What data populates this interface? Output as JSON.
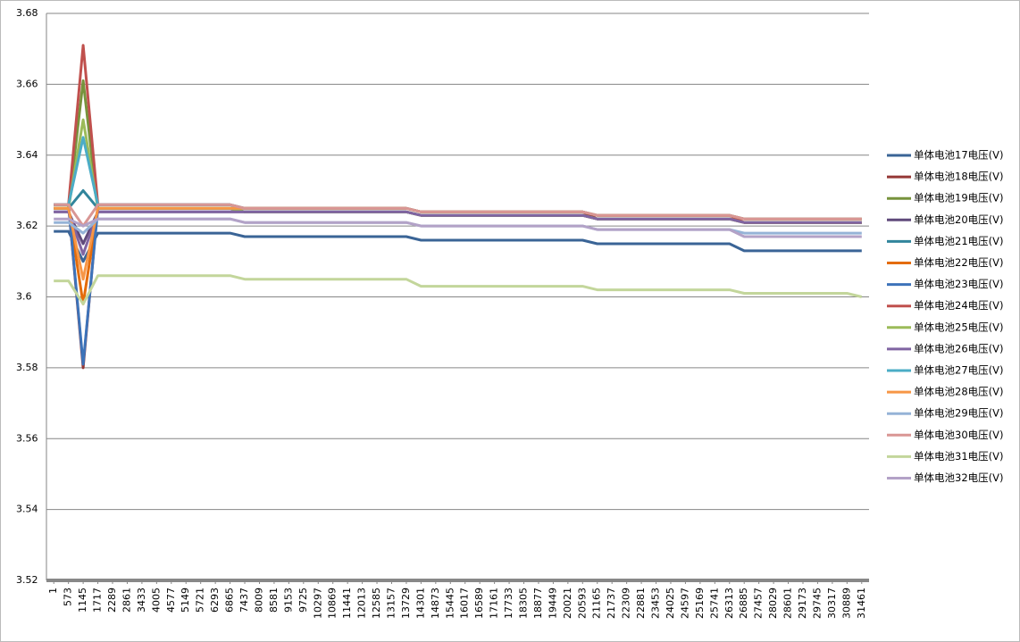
{
  "chart_data": {
    "type": "line",
    "categories": [
      1,
      573,
      1145,
      1717,
      2289,
      2861,
      3433,
      4005,
      4577,
      5149,
      5721,
      6293,
      6865,
      7437,
      8009,
      8581,
      9153,
      9725,
      10297,
      10869,
      11441,
      12013,
      12585,
      13157,
      13729,
      14301,
      14873,
      15445,
      16017,
      16589,
      17161,
      17733,
      18305,
      18877,
      19449,
      20021,
      20593,
      21165,
      21737,
      22309,
      22881,
      23453,
      24025,
      24597,
      25169,
      25741,
      26313,
      26885,
      27457,
      28029,
      28601,
      29173,
      29745,
      30317,
      30889,
      31461
    ],
    "ylim": [
      3.52,
      3.68
    ],
    "yticks": [
      3.52,
      3.54,
      3.56,
      3.58,
      3.6,
      3.62,
      3.64,
      3.66,
      3.68
    ],
    "grid": true,
    "legend": "right",
    "series": [
      {
        "name": "单体电池17电压(V)",
        "color": "#3a6496",
        "values": [
          3.6185,
          3.6185,
          3.61,
          3.618,
          3.618,
          3.618,
          3.618,
          3.618,
          3.618,
          3.618,
          3.618,
          3.618,
          3.618,
          3.617,
          3.617,
          3.617,
          3.617,
          3.617,
          3.617,
          3.617,
          3.617,
          3.617,
          3.617,
          3.617,
          3.617,
          3.616,
          3.616,
          3.616,
          3.616,
          3.616,
          3.616,
          3.616,
          3.616,
          3.616,
          3.616,
          3.616,
          3.616,
          3.615,
          3.615,
          3.615,
          3.615,
          3.615,
          3.615,
          3.615,
          3.615,
          3.615,
          3.615,
          3.613,
          3.613,
          3.613,
          3.613,
          3.613,
          3.613,
          3.613,
          3.613,
          3.613
        ]
      },
      {
        "name": "单体电池18电压(V)",
        "color": "#953735",
        "values": [
          3.626,
          3.626,
          3.58,
          3.626,
          3.626,
          3.626,
          3.626,
          3.626,
          3.626,
          3.626,
          3.626,
          3.626,
          3.626,
          3.625,
          3.625,
          3.625,
          3.625,
          3.625,
          3.625,
          3.625,
          3.625,
          3.625,
          3.625,
          3.625,
          3.625,
          3.624,
          3.624,
          3.624,
          3.624,
          3.624,
          3.624,
          3.624,
          3.624,
          3.624,
          3.624,
          3.624,
          3.624,
          3.622,
          3.622,
          3.622,
          3.622,
          3.622,
          3.622,
          3.622,
          3.622,
          3.622,
          3.622,
          3.621,
          3.621,
          3.621,
          3.621,
          3.621,
          3.621,
          3.621,
          3.621,
          3.621
        ]
      },
      {
        "name": "单体电池19电压(V)",
        "color": "#77933c",
        "values": [
          3.625,
          3.625,
          3.661,
          3.625,
          3.625,
          3.625,
          3.625,
          3.625,
          3.625,
          3.625,
          3.625,
          3.625,
          3.625,
          3.624,
          3.624,
          3.624,
          3.624,
          3.624,
          3.624,
          3.624,
          3.624,
          3.624,
          3.624,
          3.624,
          3.624,
          3.623,
          3.623,
          3.623,
          3.623,
          3.623,
          3.623,
          3.623,
          3.623,
          3.623,
          3.623,
          3.623,
          3.623,
          3.622,
          3.622,
          3.622,
          3.622,
          3.622,
          3.622,
          3.622,
          3.622,
          3.622,
          3.622,
          3.621,
          3.621,
          3.621,
          3.621,
          3.621,
          3.621,
          3.621,
          3.621,
          3.621
        ]
      },
      {
        "name": "单体电池20电压(V)",
        "color": "#604a7b",
        "values": [
          3.624,
          3.624,
          3.615,
          3.624,
          3.624,
          3.624,
          3.624,
          3.624,
          3.624,
          3.624,
          3.624,
          3.624,
          3.624,
          3.624,
          3.624,
          3.624,
          3.624,
          3.624,
          3.624,
          3.624,
          3.624,
          3.624,
          3.624,
          3.624,
          3.624,
          3.623,
          3.623,
          3.623,
          3.623,
          3.623,
          3.623,
          3.623,
          3.623,
          3.623,
          3.623,
          3.623,
          3.623,
          3.622,
          3.622,
          3.622,
          3.622,
          3.622,
          3.622,
          3.622,
          3.622,
          3.622,
          3.622,
          3.621,
          3.621,
          3.621,
          3.621,
          3.621,
          3.621,
          3.621,
          3.621,
          3.621
        ]
      },
      {
        "name": "单体电池21电压(V)",
        "color": "#31859c",
        "values": [
          3.625,
          3.625,
          3.63,
          3.625,
          3.625,
          3.625,
          3.625,
          3.625,
          3.625,
          3.625,
          3.625,
          3.625,
          3.625,
          3.625,
          3.625,
          3.625,
          3.625,
          3.625,
          3.625,
          3.625,
          3.625,
          3.625,
          3.625,
          3.625,
          3.625,
          3.624,
          3.624,
          3.624,
          3.624,
          3.624,
          3.624,
          3.624,
          3.624,
          3.624,
          3.624,
          3.624,
          3.624,
          3.623,
          3.623,
          3.623,
          3.623,
          3.623,
          3.623,
          3.623,
          3.623,
          3.623,
          3.623,
          3.622,
          3.622,
          3.622,
          3.622,
          3.622,
          3.622,
          3.622,
          3.622,
          3.622
        ]
      },
      {
        "name": "单体电池22电压(V)",
        "color": "#e46c0a",
        "values": [
          3.625,
          3.625,
          3.598,
          3.625,
          3.625,
          3.625,
          3.625,
          3.625,
          3.625,
          3.625,
          3.625,
          3.625,
          3.625,
          3.624,
          3.624,
          3.624,
          3.624,
          3.624,
          3.624,
          3.624,
          3.624,
          3.624,
          3.624,
          3.624,
          3.624,
          3.623,
          3.623,
          3.623,
          3.623,
          3.623,
          3.623,
          3.623,
          3.623,
          3.623,
          3.623,
          3.623,
          3.623,
          3.622,
          3.622,
          3.622,
          3.622,
          3.622,
          3.622,
          3.622,
          3.622,
          3.622,
          3.622,
          3.621,
          3.621,
          3.621,
          3.621,
          3.621,
          3.621,
          3.621,
          3.621,
          3.621
        ]
      },
      {
        "name": "单体电池23电压(V)",
        "color": "#3d73b9",
        "values": [
          3.626,
          3.626,
          3.581,
          3.625,
          3.625,
          3.625,
          3.625,
          3.625,
          3.625,
          3.625,
          3.625,
          3.625,
          3.625,
          3.624,
          3.624,
          3.624,
          3.624,
          3.624,
          3.624,
          3.624,
          3.624,
          3.624,
          3.624,
          3.624,
          3.624,
          3.623,
          3.623,
          3.623,
          3.623,
          3.623,
          3.623,
          3.623,
          3.623,
          3.623,
          3.623,
          3.623,
          3.623,
          3.622,
          3.622,
          3.622,
          3.622,
          3.622,
          3.622,
          3.622,
          3.622,
          3.622,
          3.622,
          3.621,
          3.621,
          3.621,
          3.621,
          3.621,
          3.621,
          3.621,
          3.621,
          3.621
        ]
      },
      {
        "name": "单体电池24电压(V)",
        "color": "#c0504d",
        "values": [
          3.626,
          3.626,
          3.671,
          3.626,
          3.626,
          3.626,
          3.626,
          3.626,
          3.626,
          3.626,
          3.626,
          3.626,
          3.626,
          3.625,
          3.625,
          3.625,
          3.625,
          3.625,
          3.625,
          3.625,
          3.625,
          3.625,
          3.625,
          3.625,
          3.625,
          3.624,
          3.624,
          3.624,
          3.624,
          3.624,
          3.624,
          3.624,
          3.624,
          3.624,
          3.624,
          3.624,
          3.624,
          3.623,
          3.623,
          3.623,
          3.623,
          3.623,
          3.623,
          3.623,
          3.623,
          3.623,
          3.623,
          3.621,
          3.621,
          3.621,
          3.621,
          3.621,
          3.621,
          3.621,
          3.621,
          3.621
        ]
      },
      {
        "name": "单体电池25电压(V)",
        "color": "#9bbb59",
        "values": [
          3.625,
          3.625,
          3.65,
          3.625,
          3.625,
          3.625,
          3.625,
          3.625,
          3.625,
          3.625,
          3.625,
          3.625,
          3.625,
          3.624,
          3.624,
          3.624,
          3.624,
          3.624,
          3.624,
          3.624,
          3.624,
          3.624,
          3.624,
          3.624,
          3.624,
          3.623,
          3.623,
          3.623,
          3.623,
          3.623,
          3.623,
          3.623,
          3.623,
          3.623,
          3.623,
          3.623,
          3.623,
          3.622,
          3.622,
          3.622,
          3.622,
          3.622,
          3.622,
          3.622,
          3.622,
          3.622,
          3.622,
          3.621,
          3.621,
          3.621,
          3.621,
          3.621,
          3.621,
          3.621,
          3.621,
          3.621
        ]
      },
      {
        "name": "单体电池26电压(V)",
        "color": "#8064a2",
        "values": [
          3.624,
          3.624,
          3.612,
          3.624,
          3.624,
          3.624,
          3.624,
          3.624,
          3.624,
          3.624,
          3.624,
          3.624,
          3.624,
          3.624,
          3.624,
          3.624,
          3.624,
          3.624,
          3.624,
          3.624,
          3.624,
          3.624,
          3.624,
          3.624,
          3.624,
          3.623,
          3.623,
          3.623,
          3.623,
          3.623,
          3.623,
          3.623,
          3.623,
          3.623,
          3.623,
          3.623,
          3.623,
          3.622,
          3.622,
          3.622,
          3.622,
          3.622,
          3.622,
          3.622,
          3.622,
          3.622,
          3.622,
          3.621,
          3.621,
          3.621,
          3.621,
          3.621,
          3.621,
          3.621,
          3.621,
          3.621
        ]
      },
      {
        "name": "单体电池27电压(V)",
        "color": "#4bacc6",
        "values": [
          3.626,
          3.626,
          3.645,
          3.626,
          3.626,
          3.626,
          3.626,
          3.626,
          3.626,
          3.626,
          3.626,
          3.626,
          3.626,
          3.625,
          3.625,
          3.625,
          3.625,
          3.625,
          3.625,
          3.625,
          3.625,
          3.625,
          3.625,
          3.625,
          3.625,
          3.624,
          3.624,
          3.624,
          3.624,
          3.624,
          3.624,
          3.624,
          3.624,
          3.624,
          3.624,
          3.624,
          3.624,
          3.623,
          3.623,
          3.623,
          3.623,
          3.623,
          3.623,
          3.623,
          3.623,
          3.623,
          3.623,
          3.622,
          3.622,
          3.622,
          3.622,
          3.622,
          3.622,
          3.622,
          3.622,
          3.622
        ]
      },
      {
        "name": "单体电池28电压(V)",
        "color": "#f79646",
        "values": [
          3.625,
          3.625,
          3.605,
          3.625,
          3.625,
          3.625,
          3.625,
          3.625,
          3.625,
          3.625,
          3.625,
          3.625,
          3.625,
          3.625,
          3.625,
          3.625,
          3.625,
          3.625,
          3.625,
          3.625,
          3.625,
          3.625,
          3.625,
          3.625,
          3.625,
          3.624,
          3.624,
          3.624,
          3.624,
          3.624,
          3.624,
          3.624,
          3.624,
          3.624,
          3.624,
          3.624,
          3.624,
          3.623,
          3.623,
          3.623,
          3.623,
          3.623,
          3.623,
          3.623,
          3.623,
          3.623,
          3.623,
          3.622,
          3.622,
          3.622,
          3.622,
          3.622,
          3.622,
          3.622,
          3.622,
          3.622
        ]
      },
      {
        "name": "单体电池29电压(V)",
        "color": "#95b3d7",
        "values": [
          3.621,
          3.621,
          3.618,
          3.622,
          3.622,
          3.622,
          3.622,
          3.622,
          3.622,
          3.622,
          3.622,
          3.622,
          3.622,
          3.621,
          3.621,
          3.621,
          3.621,
          3.621,
          3.621,
          3.621,
          3.621,
          3.621,
          3.621,
          3.621,
          3.621,
          3.62,
          3.62,
          3.62,
          3.62,
          3.62,
          3.62,
          3.62,
          3.62,
          3.62,
          3.62,
          3.62,
          3.62,
          3.619,
          3.619,
          3.619,
          3.619,
          3.619,
          3.619,
          3.619,
          3.619,
          3.619,
          3.619,
          3.618,
          3.618,
          3.618,
          3.618,
          3.618,
          3.618,
          3.618,
          3.618,
          3.618
        ]
      },
      {
        "name": "单体电池30电压(V)",
        "color": "#d99694",
        "values": [
          3.626,
          3.626,
          3.62,
          3.626,
          3.626,
          3.626,
          3.626,
          3.626,
          3.626,
          3.626,
          3.626,
          3.626,
          3.626,
          3.625,
          3.625,
          3.625,
          3.625,
          3.625,
          3.625,
          3.625,
          3.625,
          3.625,
          3.625,
          3.625,
          3.625,
          3.624,
          3.624,
          3.624,
          3.624,
          3.624,
          3.624,
          3.624,
          3.624,
          3.624,
          3.624,
          3.624,
          3.624,
          3.623,
          3.623,
          3.623,
          3.623,
          3.623,
          3.623,
          3.623,
          3.623,
          3.623,
          3.623,
          3.622,
          3.622,
          3.622,
          3.622,
          3.622,
          3.622,
          3.622,
          3.622,
          3.622
        ]
      },
      {
        "name": "单体电池31电压(V)",
        "color": "#c3d69b",
        "values": [
          3.6045,
          3.6045,
          3.598,
          3.606,
          3.606,
          3.606,
          3.606,
          3.606,
          3.606,
          3.606,
          3.606,
          3.606,
          3.606,
          3.605,
          3.605,
          3.605,
          3.605,
          3.605,
          3.605,
          3.605,
          3.605,
          3.605,
          3.605,
          3.605,
          3.605,
          3.603,
          3.603,
          3.603,
          3.603,
          3.603,
          3.603,
          3.603,
          3.603,
          3.603,
          3.603,
          3.603,
          3.603,
          3.602,
          3.602,
          3.602,
          3.602,
          3.602,
          3.602,
          3.602,
          3.602,
          3.602,
          3.602,
          3.601,
          3.601,
          3.601,
          3.601,
          3.601,
          3.601,
          3.601,
          3.601,
          3.6
        ]
      },
      {
        "name": "单体电池32电压(V)",
        "color": "#b3a2c7",
        "values": [
          3.622,
          3.622,
          3.62,
          3.622,
          3.622,
          3.622,
          3.622,
          3.622,
          3.622,
          3.622,
          3.622,
          3.622,
          3.622,
          3.621,
          3.621,
          3.621,
          3.621,
          3.621,
          3.621,
          3.621,
          3.621,
          3.621,
          3.621,
          3.621,
          3.621,
          3.62,
          3.62,
          3.62,
          3.62,
          3.62,
          3.62,
          3.62,
          3.62,
          3.62,
          3.62,
          3.62,
          3.62,
          3.619,
          3.619,
          3.619,
          3.619,
          3.619,
          3.619,
          3.619,
          3.619,
          3.619,
          3.619,
          3.617,
          3.617,
          3.617,
          3.617,
          3.617,
          3.617,
          3.617,
          3.617,
          3.617
        ]
      }
    ]
  }
}
